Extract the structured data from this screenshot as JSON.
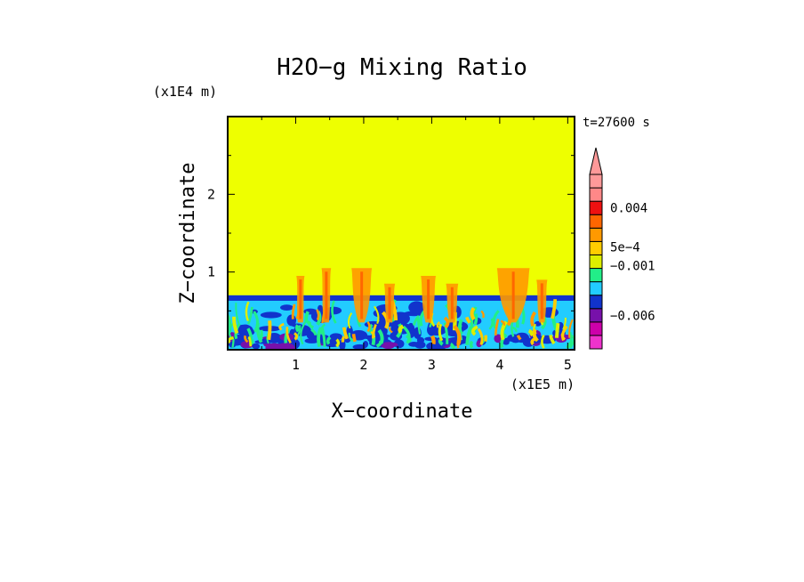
{
  "chart_data": {
    "type": "heatmap",
    "title": "H2O−g Mixing Ratio",
    "xlabel": "X−coordinate",
    "ylabel": "Z−coordinate",
    "x_scale_label": "(x1E5 m)",
    "y_scale_label": "(x1E4 m)",
    "time_label": "t=27600 s",
    "xlim": [
      0,
      5.1
    ],
    "ylim": [
      0,
      3.0
    ],
    "x_ticks": [
      1,
      2,
      3,
      4,
      5
    ],
    "y_ticks": [
      1,
      2
    ],
    "x_tick_labels": [
      "1",
      "2",
      "3",
      "4",
      "5"
    ],
    "y_tick_labels": [
      "1",
      "2"
    ],
    "background_color": "#eeff00",
    "mixed_layer_top": 0.7,
    "colorbar": {
      "colors": [
        "#ee33cc",
        "#cc00aa",
        "#7711aa",
        "#1133cc",
        "#22ccff",
        "#22ee88",
        "#ddee00",
        "#ffcc00",
        "#ff9900",
        "#ff6600",
        "#ee1111",
        "#ff8888",
        "#ff9999"
      ],
      "labels": [
        {
          "text": "0.004",
          "value_index": 10.5
        },
        {
          "text": "5e−4",
          "value_index": 7.6
        },
        {
          "text": "−0.001",
          "value_index": 6.2
        },
        {
          "text": "−0.006",
          "value_index": 2.5
        }
      ],
      "extend": "max"
    },
    "plumes": [
      {
        "x": 1.07,
        "top": 0.95,
        "width": 0.12
      },
      {
        "x": 1.45,
        "top": 1.05,
        "width": 0.14
      },
      {
        "x": 1.97,
        "top": 1.05,
        "width": 0.3
      },
      {
        "x": 2.38,
        "top": 0.85,
        "width": 0.16
      },
      {
        "x": 2.95,
        "top": 0.95,
        "width": 0.22
      },
      {
        "x": 3.3,
        "top": 0.85,
        "width": 0.18
      },
      {
        "x": 4.2,
        "top": 1.05,
        "width": 0.48
      },
      {
        "x": 4.62,
        "top": 0.9,
        "width": 0.16
      }
    ]
  }
}
